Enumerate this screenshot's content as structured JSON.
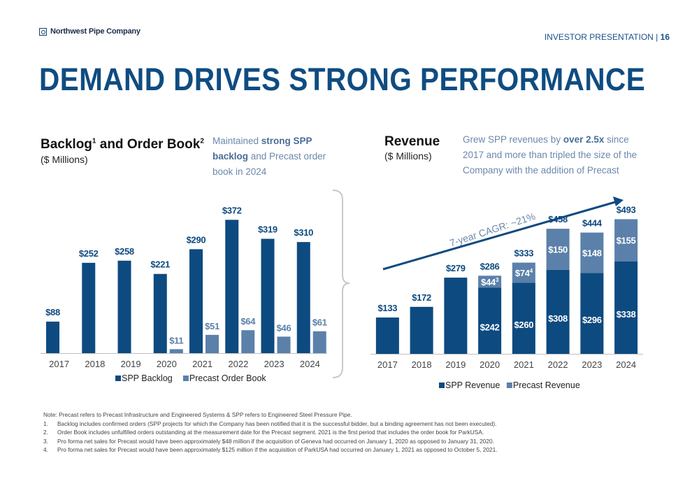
{
  "header": {
    "company": "Northwest Pipe Company",
    "section": "INVESTOR PRESENTATION |",
    "page": "16",
    "title": "DEMAND DRIVES STRONG PERFORMANCE"
  },
  "left_chart_text": {
    "title": "Backlog",
    "title_sup1": "1",
    "title_mid": " and Order Book",
    "title_sup2": "2",
    "unit": "($ Millions)",
    "callout_pre": "Maintained ",
    "callout_bold": "strong SPP backlog",
    "callout_post": " and Precast order book in 2024"
  },
  "right_chart_text": {
    "title": "Revenue",
    "unit": "($ Millions)",
    "callout_pre": "Grew SPP revenues by ",
    "callout_bold": "over 2.5x",
    "callout_post": " since 2017 and more than tripled the size of the Company with the addition of Precast",
    "cagr": "7-year CAGR: ~21%"
  },
  "colors": {
    "spp": "#0d4a80",
    "precast": "#5b80aa",
    "axis": "#bfbfbf",
    "bracket": "#c8c8c8",
    "arrow": "#0d4a80"
  },
  "chart_data": [
    {
      "type": "bar",
      "categories": [
        "2017",
        "2018",
        "2019",
        "2020",
        "2021",
        "2022",
        "2023",
        "2024"
      ],
      "series": [
        {
          "name": "SPP Backlog",
          "values": [
            88,
            252,
            258,
            221,
            290,
            372,
            319,
            310
          ],
          "labels": [
            "$88",
            "$252",
            "$258",
            "$221",
            "$290",
            "$372",
            "$319",
            "$310"
          ]
        },
        {
          "name": "Precast Order Book",
          "values": [
            null,
            null,
            null,
            11,
            51,
            64,
            46,
            61
          ],
          "labels": [
            null,
            null,
            null,
            "$11",
            "$51",
            "$64",
            "$46",
            "$61"
          ]
        }
      ],
      "legend": "bottom",
      "grid": false,
      "ylim": [
        0,
        400
      ]
    },
    {
      "type": "bar",
      "stacked": true,
      "categories": [
        "2017",
        "2018",
        "2019",
        "2020",
        "2021",
        "2022",
        "2023",
        "2024"
      ],
      "series": [
        {
          "name": "SPP Revenue",
          "values": [
            133,
            172,
            279,
            242,
            260,
            308,
            296,
            338
          ],
          "labels": [
            null,
            null,
            null,
            "$242",
            "$260",
            "$308",
            "$296",
            "$338"
          ]
        },
        {
          "name": "Precast Revenue",
          "values": [
            null,
            null,
            null,
            44,
            74,
            150,
            148,
            155
          ],
          "labels": [
            null,
            null,
            null,
            "$44",
            "$74",
            "$150",
            "$148",
            "$155"
          ],
          "label_sups": [
            null,
            null,
            null,
            "3",
            "4",
            null,
            null,
            null
          ]
        }
      ],
      "totals": [
        "$133",
        "$172",
        "$279",
        "$286",
        "$333",
        "$458",
        "$444",
        "$493"
      ],
      "legend": "bottom",
      "grid": false,
      "ylim": [
        0,
        530
      ]
    }
  ],
  "notes": {
    "intro": "Note: Precast refers to Precast Infrastructure and Engineered Systems & SPP refers to Engineered Steel Pressure Pipe.",
    "items": [
      {
        "num": "1.",
        "text": "Backlog includes confirmed orders (SPP projects for which the Company has been notified that it is the successful bidder, but a binding agreement has not been executed)."
      },
      {
        "num": "2.",
        "text": "Order Book includes unfulfilled orders outstanding at the measurement date for the Precast segment. 2021 is the first period that includes the order book for ParkUSA."
      },
      {
        "num": "3.",
        "text": "Pro forma net sales for Precast would have been approximately $48 million if the acquisition of Geneva had occurred on January 1, 2020 as opposed to January 31, 2020."
      },
      {
        "num": "4.",
        "text": "Pro forma net sales for Precast would have been approximately $125 million if the acquisition of ParkUSA had occurred on January 1, 2021 as opposed to October 5, 2021."
      }
    ]
  }
}
